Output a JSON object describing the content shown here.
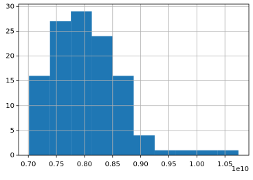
{
  "chart_data": {
    "type": "histogram",
    "bins": [
      0.7012,
      0.7385,
      0.7758,
      0.813,
      0.8503,
      0.8876,
      0.9249,
      0.9622,
      0.9994,
      1.0367,
      1.074
    ],
    "values": [
      16,
      27,
      29,
      24,
      16,
      4,
      1,
      1,
      1,
      1
    ],
    "color": "#1f77b4",
    "xlim": [
      0.6826,
      1.0926
    ],
    "xticks": [
      {
        "value": 0.7,
        "label": "0.70"
      },
      {
        "value": 0.75,
        "label": "0.75"
      },
      {
        "value": 0.8,
        "label": "0.80"
      },
      {
        "value": 0.85,
        "label": "0.85"
      },
      {
        "value": 0.9,
        "label": "0.90"
      },
      {
        "value": 0.95,
        "label": "0.95"
      },
      {
        "value": 1.0,
        "label": "1.00"
      },
      {
        "value": 1.05,
        "label": "1.05"
      }
    ],
    "x_offset_label": "1e10",
    "ylim": [
      0,
      30.45
    ],
    "yticks": [
      0,
      5,
      10,
      15,
      20,
      25,
      30
    ],
    "grid": true
  }
}
